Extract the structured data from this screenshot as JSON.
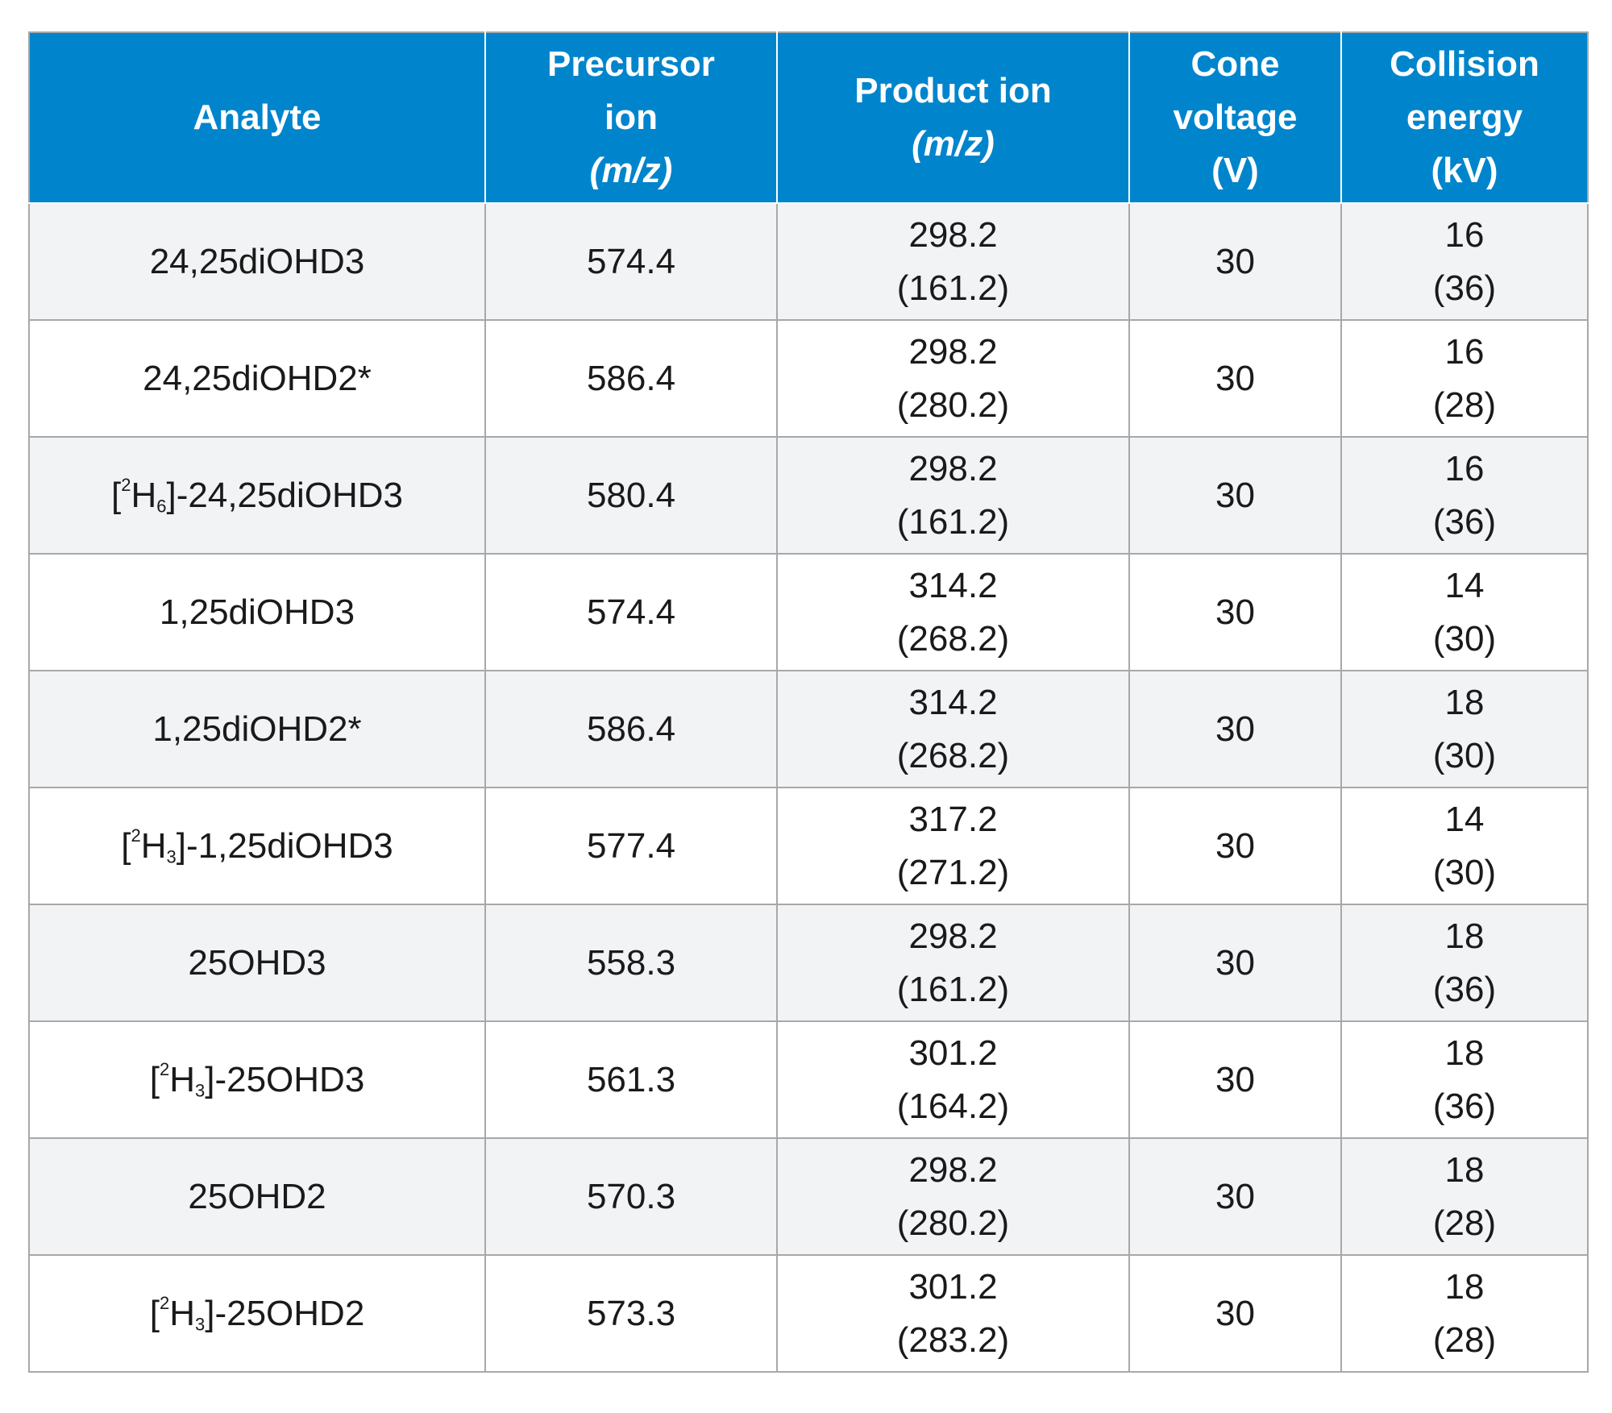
{
  "table": {
    "headers": [
      {
        "lines": [
          {
            "text": "Analyte",
            "italic": false
          }
        ]
      },
      {
        "lines": [
          {
            "text": "Precursor",
            "italic": false
          },
          {
            "text": "ion",
            "italic": false
          },
          {
            "text": "(m/z)",
            "italic": true
          }
        ]
      },
      {
        "lines": [
          {
            "text": "Product ion",
            "italic": false
          },
          {
            "text": "(m/z)",
            "italic": true
          }
        ]
      },
      {
        "lines": [
          {
            "text": "Cone",
            "italic": false
          },
          {
            "text": "voltage",
            "italic": false
          },
          {
            "text": "(V)",
            "italic": false
          }
        ]
      },
      {
        "lines": [
          {
            "text": "Collision",
            "italic": false
          },
          {
            "text": "energy",
            "italic": false
          },
          {
            "text": "(kV)",
            "italic": false
          }
        ]
      }
    ],
    "rows": [
      {
        "analyte": {
          "pre": "",
          "sup": "",
          "sub": "",
          "post": "24,25diOHD3"
        },
        "precursor": "574.4",
        "product": [
          "298.2",
          "(161.2)"
        ],
        "cone": "30",
        "collision": [
          "16",
          "(36)"
        ]
      },
      {
        "analyte": {
          "pre": "",
          "sup": "",
          "sub": "",
          "post": "24,25diOHD2*"
        },
        "precursor": "586.4",
        "product": [
          "298.2",
          "(280.2)"
        ],
        "cone": "30",
        "collision": [
          "16",
          "(28)"
        ]
      },
      {
        "analyte": {
          "pre": "[",
          "sup": "2",
          "sub": "6",
          "post": "]-24,25diOHD3"
        },
        "precursor": "580.4",
        "product": [
          "298.2",
          "(161.2)"
        ],
        "cone": "30",
        "collision": [
          "16",
          "(36)"
        ]
      },
      {
        "analyte": {
          "pre": "",
          "sup": "",
          "sub": "",
          "post": "1,25diOHD3"
        },
        "precursor": "574.4",
        "product": [
          "314.2",
          "(268.2)"
        ],
        "cone": "30",
        "collision": [
          "14",
          "(30)"
        ]
      },
      {
        "analyte": {
          "pre": "",
          "sup": "",
          "sub": "",
          "post": "1,25diOHD2*"
        },
        "precursor": "586.4",
        "product": [
          "314.2",
          "(268.2)"
        ],
        "cone": "30",
        "collision": [
          "18",
          "(30)"
        ]
      },
      {
        "analyte": {
          "pre": "[",
          "sup": "2",
          "sub": "3",
          "post": "]-1,25diOHD3"
        },
        "precursor": "577.4",
        "product": [
          "317.2",
          "(271.2)"
        ],
        "cone": "30",
        "collision": [
          "14",
          "(30)"
        ]
      },
      {
        "analyte": {
          "pre": "",
          "sup": "",
          "sub": "",
          "post": "25OHD3"
        },
        "precursor": "558.3",
        "product": [
          "298.2",
          "(161.2)"
        ],
        "cone": "30",
        "collision": [
          "18",
          "(36)"
        ]
      },
      {
        "analyte": {
          "pre": "[",
          "sup": "2",
          "sub": "3",
          "post": "]-25OHD3"
        },
        "precursor": "561.3",
        "product": [
          "301.2",
          "(164.2)"
        ],
        "cone": "30",
        "collision": [
          "18",
          "(36)"
        ]
      },
      {
        "analyte": {
          "pre": "",
          "sup": "",
          "sub": "",
          "post": "25OHD2"
        },
        "precursor": "570.3",
        "product": [
          "298.2",
          "(280.2)"
        ],
        "cone": "30",
        "collision": [
          "18",
          "(28)"
        ]
      },
      {
        "analyte": {
          "pre": "[",
          "sup": "2",
          "sub": "3",
          "post": "]-25OHD2"
        },
        "precursor": "573.3",
        "product": [
          "301.2",
          "(283.2)"
        ],
        "cone": "30",
        "collision": [
          "18",
          "(28)"
        ]
      }
    ]
  },
  "colors": {
    "header_bg": "#0085cc",
    "header_text": "#ffffff",
    "row_alt_bg": "#f2f3f5",
    "border": "#a8a8a8"
  }
}
